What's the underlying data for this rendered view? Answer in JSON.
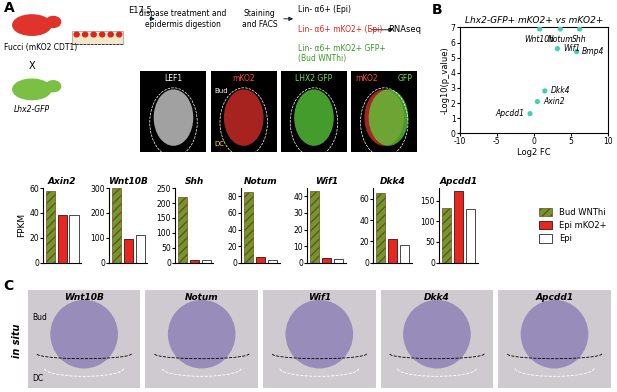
{
  "diagram": {
    "panel": "A",
    "mouse_1": "Fucci (mKO2 CDT1)",
    "cross": "X",
    "mouse_2": "Lhx2-GFP",
    "age": "E17.5",
    "step_1": [
      "dispase treatment and",
      "epidermis digestion"
    ],
    "step_2": [
      "Staining",
      "and FACS"
    ],
    "sorts": [
      [
        "Lin- α6+ (Epi)"
      ],
      [
        "Lin- α6+ mKO2+ (Epi)"
      ],
      [
        "Lin- α6+ mKO2+ GFP+",
        "(Bud WNThi)"
      ]
    ],
    "assay": "RNAseq",
    "images": [
      [
        "LEF1"
      ],
      [
        "mKO2"
      ],
      [
        "LHX2 GFP"
      ],
      [
        "mKO2",
        "GFP"
      ]
    ],
    "image_marks": [
      "Bud",
      "DC"
    ]
  },
  "chart_data": [
    {
      "type": "scatter",
      "panel": "B",
      "title": "Lhx2-GFP+ mKO2+ vs mKO2+",
      "xlabel": "Log2 FC",
      "ylabel": "-Log10(p_value)",
      "xlim": [
        -10,
        10
      ],
      "ylim": [
        0,
        7
      ],
      "xticks": [
        -10,
        -5,
        0,
        5,
        10
      ],
      "yticks": [
        0,
        1,
        2,
        3,
        4,
        5,
        6,
        7
      ],
      "color": "#3fd1b5",
      "points": [
        {
          "label": "Wnt10b",
          "x": 0.8,
          "y": 6.9
        },
        {
          "label": "Notum",
          "x": 3.6,
          "y": 6.9
        },
        {
          "label": "Shh",
          "x": 6.2,
          "y": 6.9
        },
        {
          "label": "Wif1",
          "x": 3.2,
          "y": 5.6
        },
        {
          "label": "Bmp4",
          "x": 5.8,
          "y": 5.4
        },
        {
          "label": "Dkk4",
          "x": 1.5,
          "y": 2.8
        },
        {
          "label": "Axin2",
          "x": 0.5,
          "y": 2.1
        },
        {
          "label": "Apcdd1",
          "x": -0.5,
          "y": 1.3
        }
      ]
    },
    {
      "type": "bar",
      "ylabel": "FPKM",
      "legend": "center right",
      "tick_labels": "y",
      "series": [
        {
          "name": "Bud WNThi",
          "color": "#6b9a2e",
          "values": [
            58,
            300,
            220,
            85,
            43,
            65,
            133
          ]
        },
        {
          "name": "Epi mKO2+",
          "color": "#e8261f",
          "values": [
            38,
            95,
            10,
            7,
            3,
            22,
            172
          ]
        },
        {
          "name": "Epi",
          "color": "#ffffff",
          "values": [
            38,
            110,
            8,
            3,
            2,
            17,
            130
          ]
        }
      ],
      "panels": [
        {
          "title": "Axin2",
          "ylim": [
            0,
            60
          ],
          "yticks": [
            0,
            20,
            40,
            60
          ]
        },
        {
          "title": "Wnt10B",
          "ylim": [
            0,
            300
          ],
          "yticks": [
            0,
            100,
            200,
            300
          ]
        },
        {
          "title": "Shh",
          "ylim": [
            0,
            250
          ],
          "yticks": [
            0,
            50,
            100,
            150,
            200,
            250
          ]
        },
        {
          "title": "Notum",
          "ylim": [
            0,
            90
          ],
          "yticks": [
            0,
            20,
            40,
            60,
            80
          ]
        },
        {
          "title": "Wif1",
          "ylim": [
            0,
            45
          ],
          "yticks": [
            0,
            10,
            20,
            30,
            40
          ]
        },
        {
          "title": "Dkk4",
          "ylim": [
            0,
            70
          ],
          "yticks": [
            0,
            20,
            40,
            60
          ]
        },
        {
          "title": "Apcdd1",
          "ylim": [
            0,
            180
          ],
          "yticks": [
            0,
            50,
            100,
            150
          ]
        }
      ]
    }
  ],
  "in_situ": {
    "panel": "C",
    "label": "in situ",
    "genes": [
      "Wnt10B",
      "Notum",
      "Wif1",
      "Dkk4",
      "Apcdd1"
    ],
    "marks": [
      "Bud",
      "DC"
    ]
  }
}
